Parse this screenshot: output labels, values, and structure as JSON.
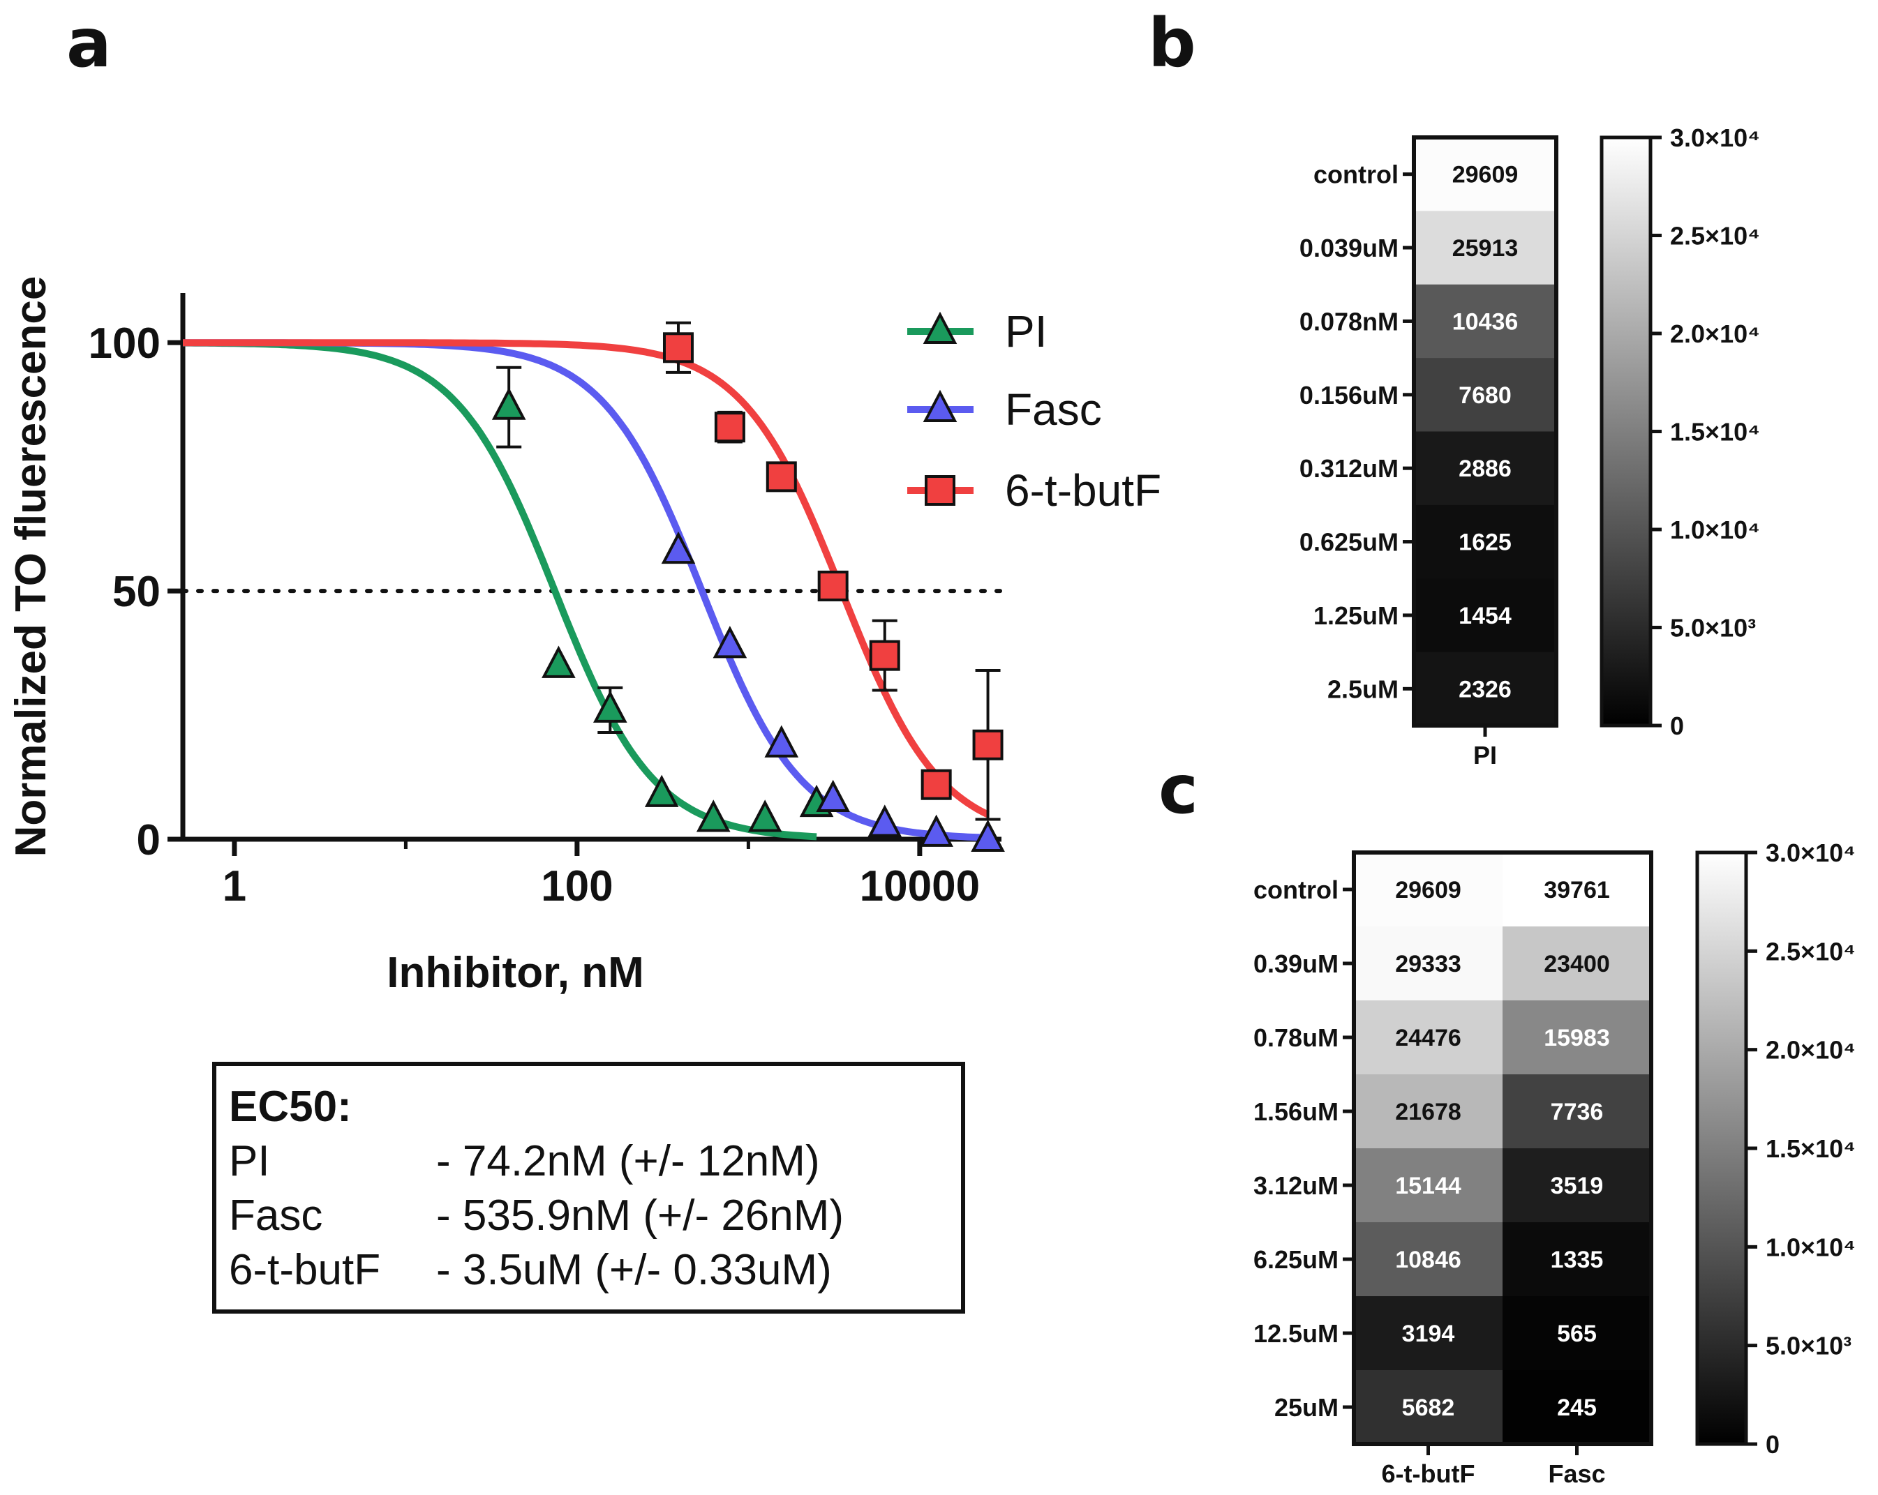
{
  "panels": {
    "a": "a",
    "b": "b",
    "c": "c"
  },
  "chart_data": [
    {
      "type": "line",
      "panel": "a",
      "xlabel": "Inhibitor, nM",
      "ylabel": "Normalized TO fluerescence",
      "xscale": "log",
      "xlim": [
        0.5,
        30000
      ],
      "ylim": [
        0,
        110
      ],
      "xticks": [
        1,
        100,
        10000
      ],
      "xtick_labels": [
        "1",
        "100",
        "10000"
      ],
      "yticks": [
        0,
        50,
        100
      ],
      "ytick_labels": [
        "0",
        "50",
        "100"
      ],
      "reference_line": {
        "y": 50,
        "style": "dotted"
      },
      "legend_position": "top-right",
      "series": [
        {
          "name": "PI",
          "color": "#1a9a5c",
          "marker": "triangle",
          "ec50": 74.2,
          "fit_range": [
            0.5,
            2500
          ],
          "points": [
            {
              "x": 40,
              "y": 87,
              "err": 8
            },
            {
              "x": 78,
              "y": 35,
              "err": 0
            },
            {
              "x": 156,
              "y": 26,
              "err": 4.5
            },
            {
              "x": 312,
              "y": 9,
              "err": 0
            },
            {
              "x": 625,
              "y": 4,
              "err": 0
            },
            {
              "x": 1250,
              "y": 4,
              "err": 0
            },
            {
              "x": 2500,
              "y": 7,
              "err": 0
            }
          ]
        },
        {
          "name": "Fasc",
          "color": "#5b5bf0",
          "marker": "triangle",
          "ec50": 535.9,
          "fit_range": [
            0.5,
            25000
          ],
          "points": [
            {
              "x": 390,
              "y": 58,
              "err": 0
            },
            {
              "x": 780,
              "y": 39,
              "err": 0
            },
            {
              "x": 1560,
              "y": 19,
              "err": 0
            },
            {
              "x": 3120,
              "y": 8,
              "err": 0
            },
            {
              "x": 6250,
              "y": 3,
              "err": 0
            },
            {
              "x": 12500,
              "y": 1,
              "err": 0
            },
            {
              "x": 25000,
              "y": 0,
              "err": 0
            }
          ]
        },
        {
          "name": "6-t-butF",
          "color": "#f04040",
          "marker": "square",
          "ec50": 3500,
          "fit_range": [
            0.5,
            25000
          ],
          "points": [
            {
              "x": 390,
              "y": 99,
              "err": 5
            },
            {
              "x": 780,
              "y": 83,
              "err": 3
            },
            {
              "x": 1560,
              "y": 73,
              "err": 0
            },
            {
              "x": 3120,
              "y": 51,
              "err": 0
            },
            {
              "x": 6250,
              "y": 37,
              "err": 7
            },
            {
              "x": 12500,
              "y": 11,
              "err": 0
            },
            {
              "x": 25000,
              "y": 19,
              "err": 15
            }
          ]
        }
      ]
    },
    {
      "type": "heatmap",
      "panel": "b",
      "rows": [
        "control",
        "0.039uM",
        "0.078nM",
        "0.156uM",
        "0.312uM",
        "0.625uM",
        "1.25uM",
        "2.5uM"
      ],
      "columns": [
        "PI"
      ],
      "values": [
        [
          29609
        ],
        [
          25913
        ],
        [
          10436
        ],
        [
          7680
        ],
        [
          2886
        ],
        [
          1625
        ],
        [
          1454
        ],
        [
          2326
        ]
      ],
      "color_range": [
        0,
        30000
      ],
      "colorbar_labels": [
        "0",
        "5.0×10³",
        "1.0×10⁴",
        "1.5×10⁴",
        "2.0×10⁴",
        "2.5×10⁴",
        "3.0×10⁴"
      ]
    },
    {
      "type": "heatmap",
      "panel": "c",
      "rows": [
        "control",
        "0.39uM",
        "0.78uM",
        "1.56uM",
        "3.12uM",
        "6.25uM",
        "12.5uM",
        "25uM"
      ],
      "columns": [
        "6-t-butF",
        "Fasc"
      ],
      "values": [
        [
          29609,
          39761
        ],
        [
          29333,
          23400
        ],
        [
          24476,
          15983
        ],
        [
          21678,
          7736
        ],
        [
          15144,
          3519
        ],
        [
          10846,
          1335
        ],
        [
          3194,
          565
        ],
        [
          5682,
          245
        ]
      ],
      "color_range": [
        0,
        30000
      ],
      "colorbar_labels": [
        "0",
        "5.0×10³",
        "1.0×10⁴",
        "1.5×10⁴",
        "2.0×10⁴",
        "2.5×10⁴",
        "3.0×10⁴"
      ]
    }
  ],
  "ec50_box": {
    "title": "EC50:",
    "rows": [
      {
        "name": "PI",
        "value": "- 74.2nM (+/- 12nM)"
      },
      {
        "name": "Fasc",
        "value": "- 535.9nM (+/- 26nM)"
      },
      {
        "name": "6-t-butF",
        "value": "- 3.5uM (+/- 0.33uM)"
      }
    ]
  }
}
